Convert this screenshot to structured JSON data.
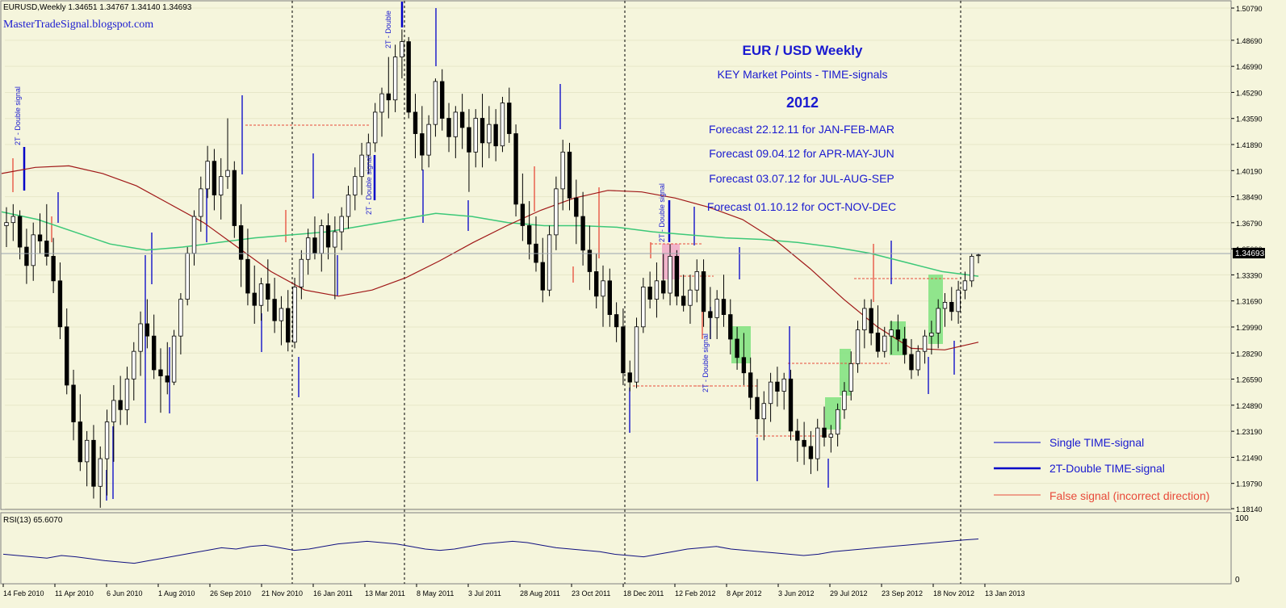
{
  "header": {
    "symbol_line": "EURUSD,Weekly  1.34651 1.34767 1.34140 1.34693",
    "site": "MasterTradeSignal.blogspot.com"
  },
  "annotation": {
    "title": "EUR / USD  Weekly",
    "subtitle": "KEY Market Points - TIME-signals",
    "year": "2012",
    "forecasts": [
      "Forecast 22.12.11 for JAN-FEB-MAR",
      "Forecast 09.04.12 for APR-MAY-JUN",
      "Forecast 03.07.12 for JUL-AUG-SEP",
      "Forecast 01.10.12 for OCT-NOV-DEC"
    ]
  },
  "legend": {
    "single": "Single TIME-signal",
    "double": "2T-Double TIME-signal",
    "false": "False signal (incorrect direction)"
  },
  "price_label": "1.34693",
  "rsi": {
    "label": "RSI(13) 65.6070",
    "max_label": "100",
    "min_label": "0"
  },
  "colors": {
    "background": "#f5f5dc",
    "bull_fill": "#ffffff",
    "bear_fill": "#000000",
    "ma_fast": "#3cc878",
    "ma_slow": "#a01818",
    "signal": "#0000c8",
    "false_signal": "#e84a3a",
    "rsi_line": "#101080",
    "text_blue": "#1a1ad0",
    "highlight_green": "#7ee27e",
    "highlight_pink": "#f0a8c8"
  },
  "chart_data": {
    "type": "candlestick",
    "instrument": "EURUSD",
    "timeframe": "Weekly",
    "ylim": [
      1.1814,
      1.5079
    ],
    "y_ticks": [
      "1.50790",
      "1.48690",
      "1.46990",
      "1.45290",
      "1.43590",
      "1.41890",
      "1.40190",
      "1.38490",
      "1.36790",
      "1.35090",
      "1.33390",
      "1.31690",
      "1.29990",
      "1.28290",
      "1.26590",
      "1.24890",
      "1.23190",
      "1.21490",
      "1.19790",
      "1.18140"
    ],
    "x_ticks": [
      "14 Feb 2010",
      "11 Apr 2010",
      "6 Jun 2010",
      "1 Aug 2010",
      "26 Sep 2010",
      "21 Nov 2010",
      "16 Jan 2011",
      "13 Mar 2011",
      "8 May 2011",
      "3 Jul 2011",
      "28 Aug 2011",
      "23 Oct 2011",
      "18 Dec 2011",
      "12 Feb 2012",
      "8 Apr 2012",
      "3 Jun 2012",
      "29 Jul 2012",
      "23 Sep 2012",
      "18 Nov 2012",
      "13 Jan 2013"
    ],
    "vertical_separators": [
      "21 Nov 2010",
      "8 May 2011",
      "18 Dec 2011",
      "13 Jan 2013"
    ],
    "candles": [
      {
        "o": 1.366,
        "h": 1.378,
        "l": 1.352,
        "c": 1.368
      },
      {
        "o": 1.368,
        "h": 1.38,
        "l": 1.356,
        "c": 1.372
      },
      {
        "o": 1.372,
        "h": 1.376,
        "l": 1.344,
        "c": 1.352
      },
      {
        "o": 1.352,
        "h": 1.364,
        "l": 1.328,
        "c": 1.34
      },
      {
        "o": 1.34,
        "h": 1.368,
        "l": 1.33,
        "c": 1.36
      },
      {
        "o": 1.36,
        "h": 1.374,
        "l": 1.348,
        "c": 1.356
      },
      {
        "o": 1.356,
        "h": 1.38,
        "l": 1.34,
        "c": 1.346
      },
      {
        "o": 1.346,
        "h": 1.358,
        "l": 1.322,
        "c": 1.33
      },
      {
        "o": 1.33,
        "h": 1.342,
        "l": 1.292,
        "c": 1.3
      },
      {
        "o": 1.3,
        "h": 1.312,
        "l": 1.256,
        "c": 1.262
      },
      {
        "o": 1.262,
        "h": 1.272,
        "l": 1.226,
        "c": 1.238
      },
      {
        "o": 1.238,
        "h": 1.256,
        "l": 1.206,
        "c": 1.212
      },
      {
        "o": 1.212,
        "h": 1.232,
        "l": 1.196,
        "c": 1.226
      },
      {
        "o": 1.226,
        "h": 1.236,
        "l": 1.188,
        "c": 1.196
      },
      {
        "o": 1.196,
        "h": 1.222,
        "l": 1.182,
        "c": 1.214
      },
      {
        "o": 1.214,
        "h": 1.246,
        "l": 1.19,
        "c": 1.238
      },
      {
        "o": 1.238,
        "h": 1.262,
        "l": 1.212,
        "c": 1.252
      },
      {
        "o": 1.252,
        "h": 1.268,
        "l": 1.236,
        "c": 1.246
      },
      {
        "o": 1.246,
        "h": 1.274,
        "l": 1.236,
        "c": 1.266
      },
      {
        "o": 1.266,
        "h": 1.29,
        "l": 1.252,
        "c": 1.284
      },
      {
        "o": 1.284,
        "h": 1.31,
        "l": 1.268,
        "c": 1.302
      },
      {
        "o": 1.302,
        "h": 1.318,
        "l": 1.286,
        "c": 1.294
      },
      {
        "o": 1.294,
        "h": 1.308,
        "l": 1.266,
        "c": 1.272
      },
      {
        "o": 1.272,
        "h": 1.286,
        "l": 1.244,
        "c": 1.268
      },
      {
        "o": 1.268,
        "h": 1.29,
        "l": 1.256,
        "c": 1.264
      },
      {
        "o": 1.264,
        "h": 1.298,
        "l": 1.262,
        "c": 1.294
      },
      {
        "o": 1.294,
        "h": 1.322,
        "l": 1.282,
        "c": 1.318
      },
      {
        "o": 1.318,
        "h": 1.352,
        "l": 1.314,
        "c": 1.348
      },
      {
        "o": 1.348,
        "h": 1.376,
        "l": 1.34,
        "c": 1.372
      },
      {
        "o": 1.372,
        "h": 1.398,
        "l": 1.362,
        "c": 1.39
      },
      {
        "o": 1.39,
        "h": 1.418,
        "l": 1.384,
        "c": 1.408
      },
      {
        "o": 1.408,
        "h": 1.416,
        "l": 1.376,
        "c": 1.386
      },
      {
        "o": 1.386,
        "h": 1.41,
        "l": 1.37,
        "c": 1.398
      },
      {
        "o": 1.398,
        "h": 1.436,
        "l": 1.39,
        "c": 1.402
      },
      {
        "o": 1.402,
        "h": 1.408,
        "l": 1.358,
        "c": 1.366
      },
      {
        "o": 1.366,
        "h": 1.38,
        "l": 1.326,
        "c": 1.344
      },
      {
        "o": 1.344,
        "h": 1.364,
        "l": 1.314,
        "c": 1.322
      },
      {
        "o": 1.322,
        "h": 1.34,
        "l": 1.302,
        "c": 1.314
      },
      {
        "o": 1.314,
        "h": 1.332,
        "l": 1.304,
        "c": 1.328
      },
      {
        "o": 1.328,
        "h": 1.344,
        "l": 1.31,
        "c": 1.318
      },
      {
        "o": 1.318,
        "h": 1.332,
        "l": 1.296,
        "c": 1.304
      },
      {
        "o": 1.304,
        "h": 1.32,
        "l": 1.288,
        "c": 1.312
      },
      {
        "o": 1.312,
        "h": 1.324,
        "l": 1.284,
        "c": 1.29
      },
      {
        "o": 1.29,
        "h": 1.332,
        "l": 1.286,
        "c": 1.326
      },
      {
        "o": 1.326,
        "h": 1.35,
        "l": 1.318,
        "c": 1.344
      },
      {
        "o": 1.344,
        "h": 1.364,
        "l": 1.334,
        "c": 1.358
      },
      {
        "o": 1.358,
        "h": 1.372,
        "l": 1.344,
        "c": 1.348
      },
      {
        "o": 1.348,
        "h": 1.37,
        "l": 1.336,
        "c": 1.366
      },
      {
        "o": 1.366,
        "h": 1.374,
        "l": 1.344,
        "c": 1.352
      },
      {
        "o": 1.352,
        "h": 1.372,
        "l": 1.318,
        "c": 1.362
      },
      {
        "o": 1.362,
        "h": 1.378,
        "l": 1.35,
        "c": 1.372
      },
      {
        "o": 1.372,
        "h": 1.392,
        "l": 1.364,
        "c": 1.386
      },
      {
        "o": 1.386,
        "h": 1.404,
        "l": 1.376,
        "c": 1.398
      },
      {
        "o": 1.398,
        "h": 1.42,
        "l": 1.386,
        "c": 1.412
      },
      {
        "o": 1.412,
        "h": 1.426,
        "l": 1.4,
        "c": 1.42
      },
      {
        "o": 1.42,
        "h": 1.446,
        "l": 1.414,
        "c": 1.44
      },
      {
        "o": 1.44,
        "h": 1.456,
        "l": 1.424,
        "c": 1.452
      },
      {
        "o": 1.452,
        "h": 1.476,
        "l": 1.436,
        "c": 1.448
      },
      {
        "o": 1.448,
        "h": 1.484,
        "l": 1.44,
        "c": 1.476
      },
      {
        "o": 1.476,
        "h": 1.494,
        "l": 1.462,
        "c": 1.486
      },
      {
        "o": 1.486,
        "h": 1.489,
        "l": 1.436,
        "c": 1.44
      },
      {
        "o": 1.44,
        "h": 1.452,
        "l": 1.41,
        "c": 1.426
      },
      {
        "o": 1.426,
        "h": 1.444,
        "l": 1.402,
        "c": 1.412
      },
      {
        "o": 1.412,
        "h": 1.438,
        "l": 1.404,
        "c": 1.432
      },
      {
        "o": 1.432,
        "h": 1.462,
        "l": 1.424,
        "c": 1.46
      },
      {
        "o": 1.46,
        "h": 1.468,
        "l": 1.428,
        "c": 1.436
      },
      {
        "o": 1.436,
        "h": 1.446,
        "l": 1.414,
        "c": 1.424
      },
      {
        "o": 1.424,
        "h": 1.444,
        "l": 1.41,
        "c": 1.44
      },
      {
        "o": 1.44,
        "h": 1.452,
        "l": 1.416,
        "c": 1.43
      },
      {
        "o": 1.43,
        "h": 1.442,
        "l": 1.388,
        "c": 1.414
      },
      {
        "o": 1.414,
        "h": 1.442,
        "l": 1.404,
        "c": 1.436
      },
      {
        "o": 1.436,
        "h": 1.452,
        "l": 1.404,
        "c": 1.42
      },
      {
        "o": 1.42,
        "h": 1.444,
        "l": 1.41,
        "c": 1.432
      },
      {
        "o": 1.432,
        "h": 1.442,
        "l": 1.408,
        "c": 1.418
      },
      {
        "o": 1.418,
        "h": 1.45,
        "l": 1.414,
        "c": 1.446
      },
      {
        "o": 1.446,
        "h": 1.456,
        "l": 1.42,
        "c": 1.426
      },
      {
        "o": 1.426,
        "h": 1.432,
        "l": 1.372,
        "c": 1.38
      },
      {
        "o": 1.38,
        "h": 1.4,
        "l": 1.356,
        "c": 1.366
      },
      {
        "o": 1.366,
        "h": 1.382,
        "l": 1.344,
        "c": 1.354
      },
      {
        "o": 1.354,
        "h": 1.372,
        "l": 1.336,
        "c": 1.342
      },
      {
        "o": 1.342,
        "h": 1.358,
        "l": 1.316,
        "c": 1.324
      },
      {
        "o": 1.324,
        "h": 1.366,
        "l": 1.32,
        "c": 1.36
      },
      {
        "o": 1.36,
        "h": 1.398,
        "l": 1.35,
        "c": 1.39
      },
      {
        "o": 1.39,
        "h": 1.422,
        "l": 1.376,
        "c": 1.414
      },
      {
        "o": 1.414,
        "h": 1.42,
        "l": 1.376,
        "c": 1.384
      },
      {
        "o": 1.384,
        "h": 1.396,
        "l": 1.354,
        "c": 1.372
      },
      {
        "o": 1.372,
        "h": 1.388,
        "l": 1.34,
        "c": 1.35
      },
      {
        "o": 1.35,
        "h": 1.366,
        "l": 1.324,
        "c": 1.336
      },
      {
        "o": 1.336,
        "h": 1.348,
        "l": 1.312,
        "c": 1.32
      },
      {
        "o": 1.32,
        "h": 1.34,
        "l": 1.3,
        "c": 1.33
      },
      {
        "o": 1.33,
        "h": 1.338,
        "l": 1.3,
        "c": 1.308
      },
      {
        "o": 1.308,
        "h": 1.316,
        "l": 1.29,
        "c": 1.3
      },
      {
        "o": 1.3,
        "h": 1.312,
        "l": 1.262,
        "c": 1.27
      },
      {
        "o": 1.27,
        "h": 1.278,
        "l": 1.258,
        "c": 1.264
      },
      {
        "o": 1.264,
        "h": 1.306,
        "l": 1.26,
        "c": 1.3
      },
      {
        "o": 1.3,
        "h": 1.332,
        "l": 1.296,
        "c": 1.326
      },
      {
        "o": 1.326,
        "h": 1.336,
        "l": 1.312,
        "c": 1.318
      },
      {
        "o": 1.318,
        "h": 1.342,
        "l": 1.306,
        "c": 1.33
      },
      {
        "o": 1.33,
        "h": 1.348,
        "l": 1.318,
        "c": 1.322
      },
      {
        "o": 1.322,
        "h": 1.354,
        "l": 1.314,
        "c": 1.346
      },
      {
        "o": 1.346,
        "h": 1.35,
        "l": 1.314,
        "c": 1.32
      },
      {
        "o": 1.32,
        "h": 1.334,
        "l": 1.31,
        "c": 1.314
      },
      {
        "o": 1.314,
        "h": 1.334,
        "l": 1.302,
        "c": 1.324
      },
      {
        "o": 1.324,
        "h": 1.344,
        "l": 1.316,
        "c": 1.336
      },
      {
        "o": 1.336,
        "h": 1.344,
        "l": 1.3,
        "c": 1.31
      },
      {
        "o": 1.31,
        "h": 1.326,
        "l": 1.292,
        "c": 1.306
      },
      {
        "o": 1.306,
        "h": 1.324,
        "l": 1.292,
        "c": 1.318
      },
      {
        "o": 1.318,
        "h": 1.334,
        "l": 1.3,
        "c": 1.308
      },
      {
        "o": 1.308,
        "h": 1.318,
        "l": 1.282,
        "c": 1.292
      },
      {
        "o": 1.292,
        "h": 1.3,
        "l": 1.272,
        "c": 1.28
      },
      {
        "o": 1.28,
        "h": 1.296,
        "l": 1.262,
        "c": 1.27
      },
      {
        "o": 1.27,
        "h": 1.28,
        "l": 1.246,
        "c": 1.254
      },
      {
        "o": 1.254,
        "h": 1.266,
        "l": 1.23,
        "c": 1.24
      },
      {
        "o": 1.24,
        "h": 1.258,
        "l": 1.226,
        "c": 1.25
      },
      {
        "o": 1.25,
        "h": 1.27,
        "l": 1.238,
        "c": 1.264
      },
      {
        "o": 1.264,
        "h": 1.274,
        "l": 1.248,
        "c": 1.258
      },
      {
        "o": 1.258,
        "h": 1.27,
        "l": 1.246,
        "c": 1.266
      },
      {
        "o": 1.266,
        "h": 1.272,
        "l": 1.226,
        "c": 1.232
      },
      {
        "o": 1.232,
        "h": 1.24,
        "l": 1.212,
        "c": 1.226
      },
      {
        "o": 1.226,
        "h": 1.238,
        "l": 1.21,
        "c": 1.222
      },
      {
        "o": 1.222,
        "h": 1.232,
        "l": 1.204,
        "c": 1.214
      },
      {
        "o": 1.214,
        "h": 1.24,
        "l": 1.206,
        "c": 1.234
      },
      {
        "o": 1.234,
        "h": 1.248,
        "l": 1.222,
        "c": 1.228
      },
      {
        "o": 1.228,
        "h": 1.236,
        "l": 1.218,
        "c": 1.23
      },
      {
        "o": 1.23,
        "h": 1.25,
        "l": 1.222,
        "c": 1.246
      },
      {
        "o": 1.246,
        "h": 1.264,
        "l": 1.24,
        "c": 1.258
      },
      {
        "o": 1.258,
        "h": 1.284,
        "l": 1.252,
        "c": 1.276
      },
      {
        "o": 1.276,
        "h": 1.304,
        "l": 1.27,
        "c": 1.298
      },
      {
        "o": 1.298,
        "h": 1.318,
        "l": 1.286,
        "c": 1.312
      },
      {
        "o": 1.312,
        "h": 1.318,
        "l": 1.288,
        "c": 1.296
      },
      {
        "o": 1.296,
        "h": 1.314,
        "l": 1.28,
        "c": 1.284
      },
      {
        "o": 1.284,
        "h": 1.3,
        "l": 1.28,
        "c": 1.294
      },
      {
        "o": 1.294,
        "h": 1.304,
        "l": 1.282,
        "c": 1.298
      },
      {
        "o": 1.298,
        "h": 1.308,
        "l": 1.284,
        "c": 1.292
      },
      {
        "o": 1.292,
        "h": 1.3,
        "l": 1.276,
        "c": 1.282
      },
      {
        "o": 1.282,
        "h": 1.292,
        "l": 1.266,
        "c": 1.272
      },
      {
        "o": 1.272,
        "h": 1.288,
        "l": 1.268,
        "c": 1.284
      },
      {
        "o": 1.284,
        "h": 1.298,
        "l": 1.276,
        "c": 1.294
      },
      {
        "o": 1.294,
        "h": 1.304,
        "l": 1.282,
        "c": 1.296
      },
      {
        "o": 1.296,
        "h": 1.318,
        "l": 1.286,
        "c": 1.312
      },
      {
        "o": 1.312,
        "h": 1.322,
        "l": 1.3,
        "c": 1.316
      },
      {
        "o": 1.316,
        "h": 1.326,
        "l": 1.304,
        "c": 1.31
      },
      {
        "o": 1.31,
        "h": 1.33,
        "l": 1.302,
        "c": 1.324
      },
      {
        "o": 1.324,
        "h": 1.336,
        "l": 1.318,
        "c": 1.33
      },
      {
        "o": 1.33,
        "h": 1.348,
        "l": 1.326,
        "c": 1.346
      },
      {
        "o": 1.3465,
        "h": 1.3477,
        "l": 1.3414,
        "c": 1.3469
      }
    ],
    "ma_fast": [
      1.375,
      1.37,
      1.362,
      1.354,
      1.35,
      1.352,
      1.355,
      1.358,
      1.36,
      1.362,
      1.366,
      1.37,
      1.374,
      1.372,
      1.368,
      1.366,
      1.366,
      1.365,
      1.362,
      1.36,
      1.358,
      1.357,
      1.355,
      1.352,
      1.348,
      1.342,
      1.336,
      1.333
    ],
    "ma_slow": [
      1.4,
      1.404,
      1.405,
      1.4,
      1.392,
      1.38,
      1.368,
      1.352,
      1.336,
      1.324,
      1.32,
      1.324,
      1.332,
      1.343,
      1.355,
      1.366,
      1.376,
      1.384,
      1.389,
      1.388,
      1.384,
      1.378,
      1.37,
      1.356,
      1.338,
      1.318,
      1.3,
      1.286,
      1.285,
      1.29
    ],
    "rsi_values": [
      42,
      40,
      38,
      36,
      40,
      38,
      35,
      32,
      30,
      28,
      32,
      36,
      40,
      44,
      48,
      52,
      50,
      54,
      56,
      52,
      48,
      50,
      54,
      58,
      60,
      62,
      60,
      58,
      54,
      50,
      48,
      50,
      54,
      58,
      60,
      62,
      60,
      56,
      52,
      50,
      48,
      46,
      42,
      40,
      38,
      42,
      46,
      50,
      52,
      54,
      50,
      48,
      46,
      44,
      42,
      40,
      42,
      46,
      48,
      50,
      52,
      54,
      56,
      58,
      60,
      62,
      64,
      65.6
    ]
  }
}
